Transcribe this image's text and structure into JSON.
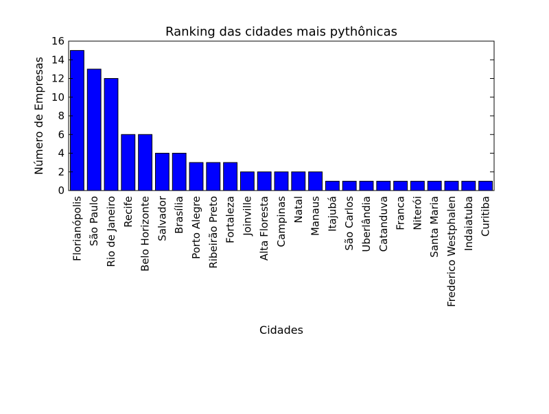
{
  "chart_data": {
    "type": "bar",
    "title": "Ranking das cidades mais pythônicas",
    "xlabel": "Cidades",
    "ylabel": "Número de Empresas",
    "ylim": [
      0,
      16
    ],
    "yticks": [
      0,
      2,
      4,
      6,
      8,
      10,
      12,
      14,
      16
    ],
    "grid": false,
    "bar_color": "#0000ff",
    "edge_color": "#000000",
    "categories": [
      "Florianópolis",
      "São Paulo",
      "Rio de Janeiro",
      "Recife",
      "Belo Horizonte",
      "Salvador",
      "Brasília",
      "Porto Alegre",
      "Ribeirão Preto",
      "Fortaleza",
      "Joinville",
      "Alta Floresta",
      "Campinas",
      "Natal",
      "Manaus",
      "Itajubá",
      "São Carlos",
      "Uberlândia",
      "Catanduva",
      "Franca",
      "Niterói",
      "Santa Maria",
      "Frederico Westphalen",
      "Indaiatuba",
      "Curitiba"
    ],
    "values": [
      15,
      13,
      12,
      6,
      6,
      4,
      4,
      3,
      3,
      3,
      2,
      2,
      2,
      2,
      2,
      1,
      1,
      1,
      1,
      1,
      1,
      1,
      1,
      1,
      1
    ]
  }
}
